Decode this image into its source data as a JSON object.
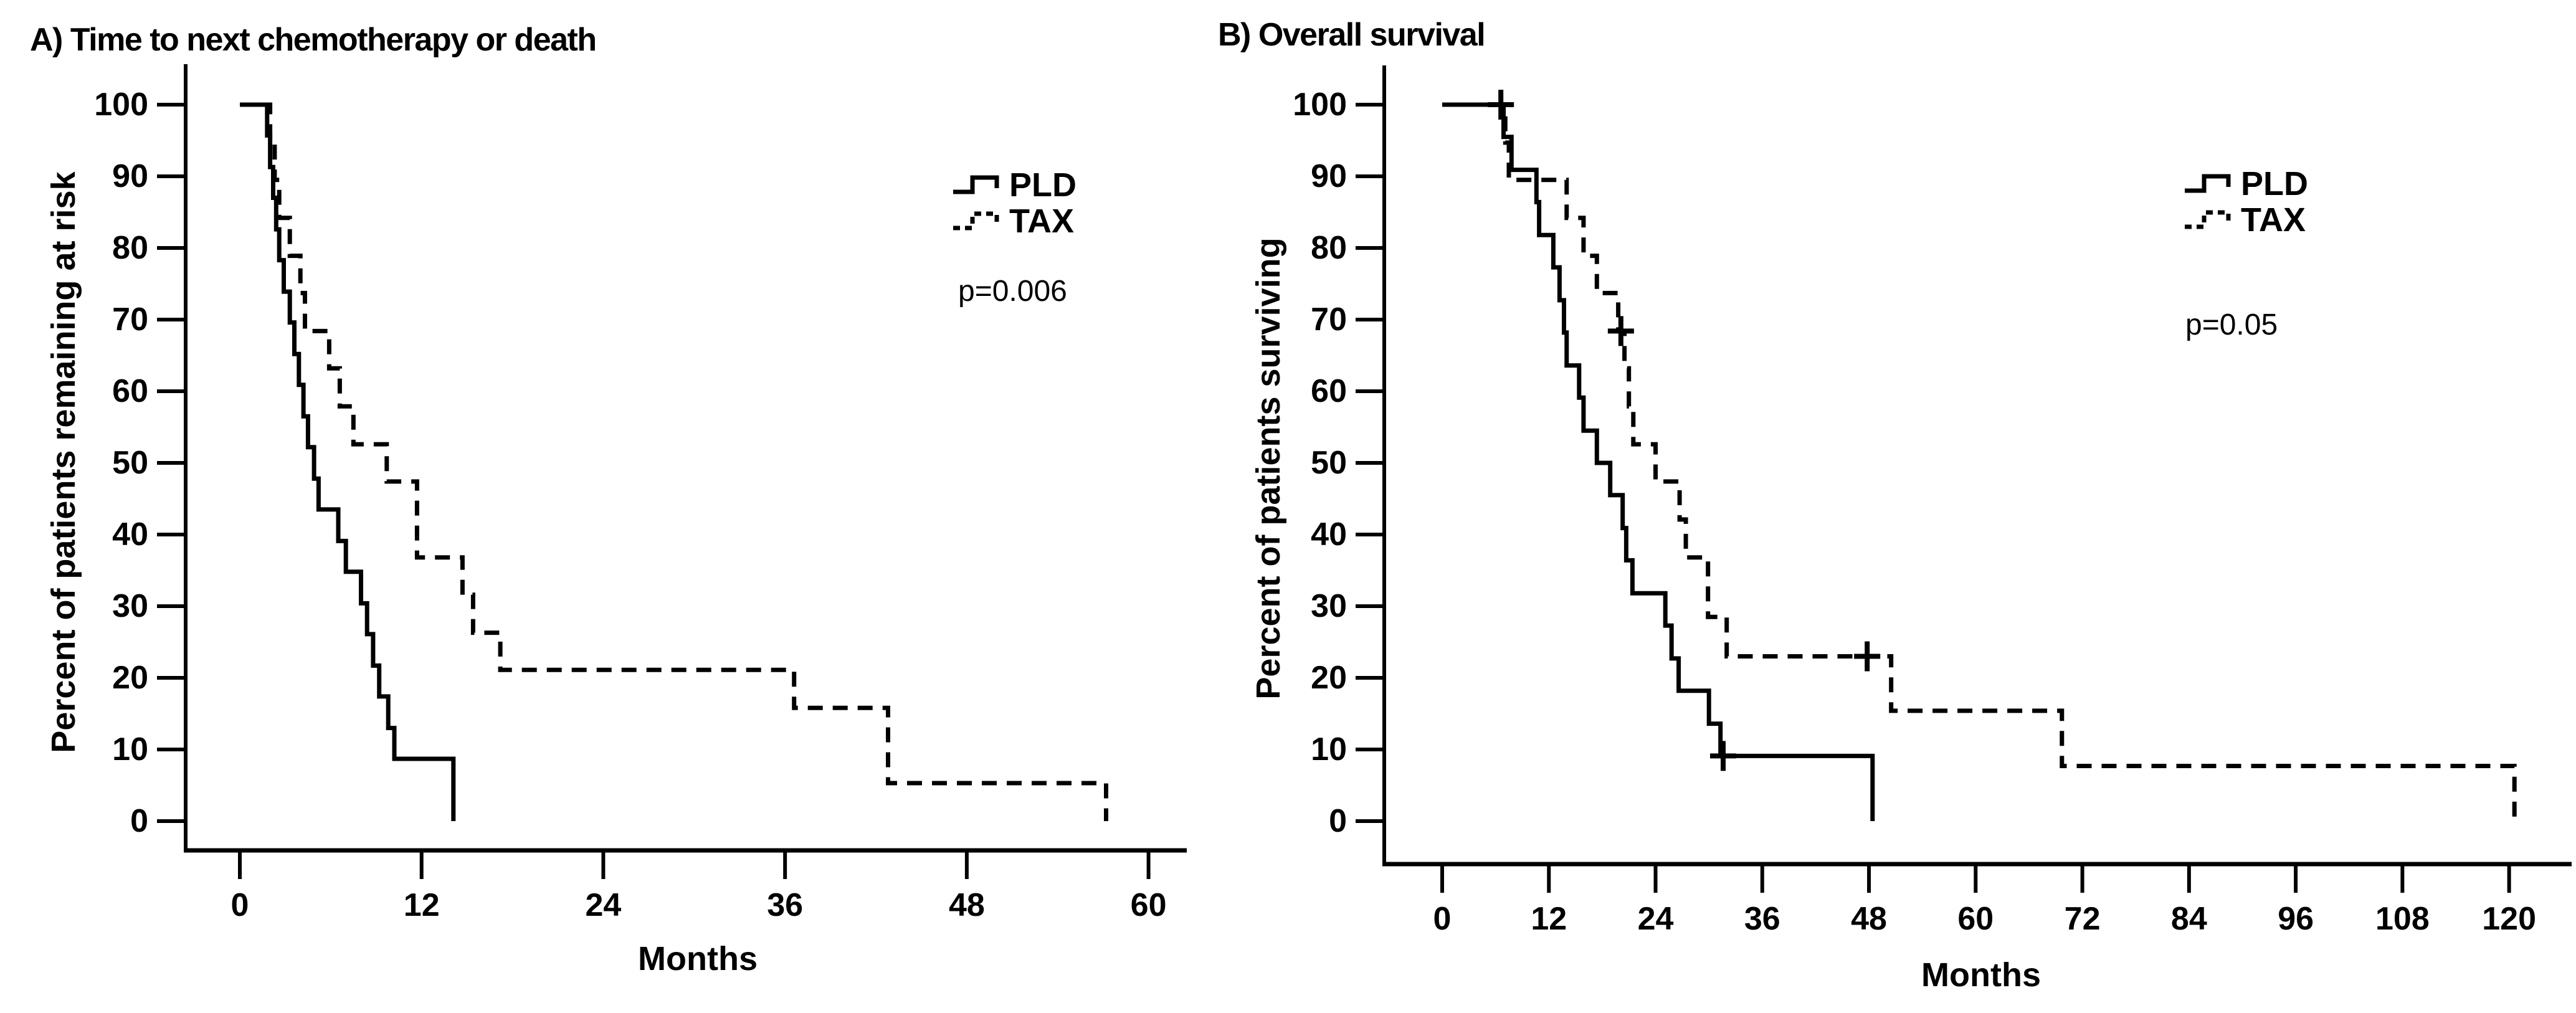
{
  "figure": {
    "background_color": "#ffffff",
    "line_color": "#000000"
  },
  "chart_data": [
    {
      "type": "line",
      "subtype": "kaplan-meier-step",
      "panel_label": "A) Time to next chemotherapy or death",
      "xlabel": "Months",
      "ylabel": "Percent of patients remaining at risk",
      "p_value": "p=0.006",
      "x_ticks": [
        0,
        12,
        24,
        36,
        48,
        60
      ],
      "y_ticks": [
        100,
        90,
        80,
        70,
        60,
        50,
        40,
        30,
        20,
        10,
        0
      ],
      "xlim": [
        0,
        60
      ],
      "ylim": [
        0,
        100
      ],
      "grid": false,
      "legend_position": "upper right",
      "legend": [
        {
          "name": "PLD",
          "style": "solid"
        },
        {
          "name": "TAX",
          "style": "dashed"
        }
      ],
      "series": [
        {
          "name": "PLD",
          "dashed": false,
          "points": [
            [
              0,
              100
            ],
            [
              1.8,
              100
            ],
            [
              1.8,
              95.7
            ],
            [
              2.0,
              95.7
            ],
            [
              2.0,
              91.3
            ],
            [
              2.2,
              91.3
            ],
            [
              2.2,
              87.0
            ],
            [
              2.4,
              87.0
            ],
            [
              2.4,
              82.6
            ],
            [
              2.6,
              82.6
            ],
            [
              2.6,
              78.3
            ],
            [
              2.9,
              78.3
            ],
            [
              2.9,
              73.9
            ],
            [
              3.3,
              73.9
            ],
            [
              3.3,
              69.6
            ],
            [
              3.6,
              69.6
            ],
            [
              3.6,
              65.2
            ],
            [
              3.9,
              65.2
            ],
            [
              3.9,
              60.9
            ],
            [
              4.2,
              60.9
            ],
            [
              4.2,
              56.5
            ],
            [
              4.5,
              56.5
            ],
            [
              4.5,
              52.2
            ],
            [
              4.9,
              52.2
            ],
            [
              4.9,
              47.8
            ],
            [
              5.2,
              47.8
            ],
            [
              5.2,
              43.5
            ],
            [
              6.5,
              43.5
            ],
            [
              6.5,
              39.1
            ],
            [
              7.0,
              39.1
            ],
            [
              7.0,
              34.8
            ],
            [
              8.0,
              34.8
            ],
            [
              8.0,
              30.4
            ],
            [
              8.4,
              30.4
            ],
            [
              8.4,
              26.1
            ],
            [
              8.8,
              26.1
            ],
            [
              8.8,
              21.7
            ],
            [
              9.2,
              21.7
            ],
            [
              9.2,
              17.4
            ],
            [
              9.8,
              17.4
            ],
            [
              9.8,
              13.0
            ],
            [
              10.2,
              13.0
            ],
            [
              10.2,
              8.7
            ],
            [
              14.1,
              8.7
            ],
            [
              14.1,
              0
            ]
          ],
          "censors": []
        },
        {
          "name": "TAX",
          "dashed": true,
          "points": [
            [
              0,
              100
            ],
            [
              2.0,
              100
            ],
            [
              2.0,
              94.7
            ],
            [
              2.3,
              94.7
            ],
            [
              2.3,
              89.5
            ],
            [
              2.6,
              89.5
            ],
            [
              2.6,
              84.2
            ],
            [
              3.3,
              84.2
            ],
            [
              3.3,
              78.9
            ],
            [
              4.0,
              78.9
            ],
            [
              4.0,
              73.7
            ],
            [
              4.3,
              73.7
            ],
            [
              4.3,
              68.4
            ],
            [
              5.9,
              68.4
            ],
            [
              5.9,
              63.2
            ],
            [
              6.6,
              63.2
            ],
            [
              6.6,
              57.9
            ],
            [
              7.5,
              57.9
            ],
            [
              7.5,
              52.6
            ],
            [
              9.7,
              52.6
            ],
            [
              9.7,
              47.4
            ],
            [
              11.7,
              47.4
            ],
            [
              11.7,
              36.8
            ],
            [
              14.7,
              36.8
            ],
            [
              14.7,
              31.6
            ],
            [
              15.4,
              31.6
            ],
            [
              15.4,
              26.3
            ],
            [
              17.2,
              26.3
            ],
            [
              17.2,
              21.1
            ],
            [
              36.6,
              21.1
            ],
            [
              36.6,
              15.8
            ],
            [
              42.8,
              15.8
            ],
            [
              42.8,
              5.3
            ],
            [
              57.2,
              5.3
            ],
            [
              57.2,
              0
            ]
          ],
          "censors": []
        }
      ]
    },
    {
      "type": "line",
      "subtype": "kaplan-meier-step",
      "panel_label": "B) Overall survival",
      "xlabel": "Months",
      "ylabel": "Percent of patients surviving",
      "p_value": "p=0.05",
      "x_ticks": [
        0,
        12,
        24,
        36,
        48,
        60,
        72,
        84,
        96,
        108,
        120
      ],
      "y_ticks": [
        100,
        90,
        80,
        70,
        60,
        50,
        40,
        30,
        20,
        10,
        0
      ],
      "xlim": [
        0,
        120
      ],
      "ylim": [
        0,
        100
      ],
      "grid": false,
      "legend_position": "upper right",
      "legend": [
        {
          "name": "PLD",
          "style": "solid"
        },
        {
          "name": "TAX",
          "style": "dashed"
        }
      ],
      "series": [
        {
          "name": "PLD",
          "dashed": false,
          "points": [
            [
              0,
              100
            ],
            [
              6.9,
              100
            ],
            [
              6.9,
              95.5
            ],
            [
              7.8,
              95.5
            ],
            [
              7.8,
              90.9
            ],
            [
              10.6,
              90.9
            ],
            [
              10.6,
              86.4
            ],
            [
              10.9,
              86.4
            ],
            [
              10.9,
              81.8
            ],
            [
              12.5,
              81.8
            ],
            [
              12.5,
              77.3
            ],
            [
              13.2,
              77.3
            ],
            [
              13.2,
              72.7
            ],
            [
              13.7,
              72.7
            ],
            [
              13.7,
              68.2
            ],
            [
              14.0,
              68.2
            ],
            [
              14.0,
              63.6
            ],
            [
              15.4,
              63.6
            ],
            [
              15.4,
              59.1
            ],
            [
              15.9,
              59.1
            ],
            [
              15.9,
              54.5
            ],
            [
              17.4,
              54.5
            ],
            [
              17.4,
              50.0
            ],
            [
              18.9,
              50.0
            ],
            [
              18.9,
              45.5
            ],
            [
              20.3,
              45.5
            ],
            [
              20.3,
              40.9
            ],
            [
              20.7,
              40.9
            ],
            [
              20.7,
              36.4
            ],
            [
              21.4,
              36.4
            ],
            [
              21.4,
              31.8
            ],
            [
              25.1,
              31.8
            ],
            [
              25.1,
              27.3
            ],
            [
              25.8,
              27.3
            ],
            [
              25.8,
              22.7
            ],
            [
              26.6,
              22.7
            ],
            [
              26.6,
              18.2
            ],
            [
              30.0,
              18.2
            ],
            [
              30.0,
              13.6
            ],
            [
              31.3,
              13.6
            ],
            [
              31.3,
              9.1
            ],
            [
              48.4,
              9.1
            ],
            [
              48.4,
              0
            ]
          ],
          "censors": [
            [
              6.6,
              100
            ],
            [
              31.6,
              9.1
            ]
          ]
        },
        {
          "name": "TAX",
          "dashed": true,
          "points": [
            [
              0,
              100
            ],
            [
              7.1,
              100
            ],
            [
              7.1,
              94.7
            ],
            [
              7.5,
              94.7
            ],
            [
              7.5,
              89.5
            ],
            [
              14.0,
              89.5
            ],
            [
              14.0,
              84.2
            ],
            [
              15.9,
              84.2
            ],
            [
              15.9,
              78.9
            ],
            [
              17.4,
              78.9
            ],
            [
              17.4,
              73.7
            ],
            [
              19.8,
              73.7
            ],
            [
              19.8,
              68.4
            ],
            [
              20.5,
              68.4
            ],
            [
              20.5,
              63.2
            ],
            [
              21.0,
              63.2
            ],
            [
              21.0,
              57.9
            ],
            [
              21.5,
              57.9
            ],
            [
              21.5,
              52.6
            ],
            [
              24.0,
              52.6
            ],
            [
              24.0,
              47.4
            ],
            [
              26.7,
              47.4
            ],
            [
              26.7,
              42.1
            ],
            [
              27.4,
              42.1
            ],
            [
              27.4,
              36.8
            ],
            [
              29.9,
              36.8
            ],
            [
              29.9,
              28.5
            ],
            [
              32.0,
              28.5
            ],
            [
              32.0,
              23.0
            ],
            [
              50.5,
              23.0
            ],
            [
              50.5,
              15.4
            ],
            [
              69.7,
              15.4
            ],
            [
              69.7,
              7.7
            ],
            [
              120.6,
              7.7
            ],
            [
              120.6,
              0
            ]
          ],
          "censors": [
            [
              20.1,
              68.4
            ],
            [
              47.8,
              23.0
            ]
          ]
        }
      ]
    }
  ]
}
